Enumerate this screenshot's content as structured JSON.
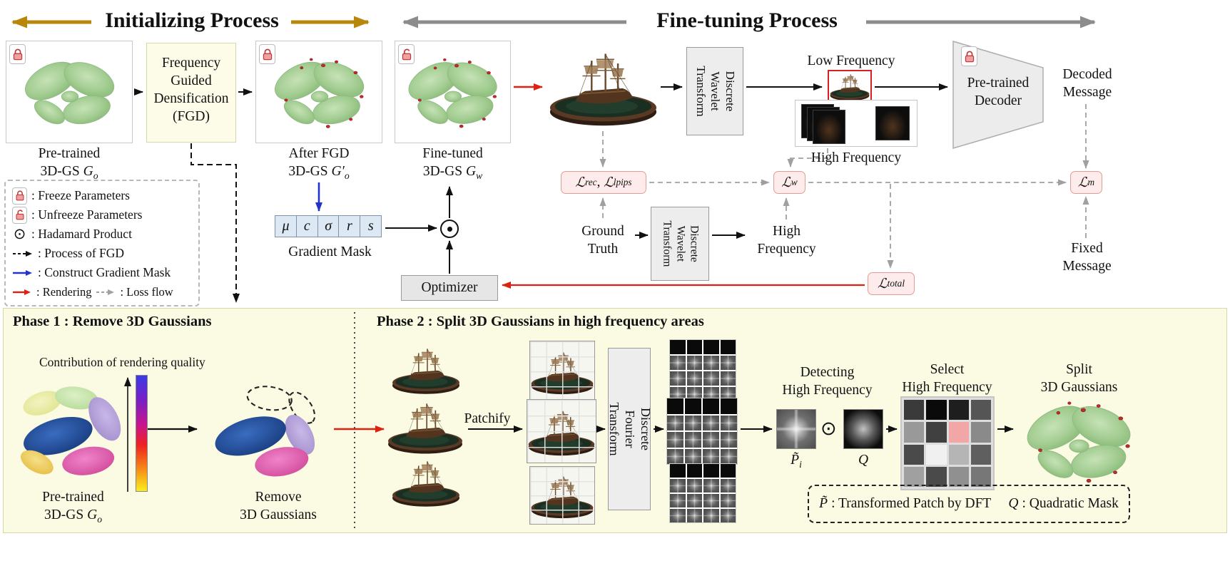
{
  "colors": {
    "gold_accent": "#b8860b",
    "gray_arrow": "#8c8c8c",
    "red_arrow": "#dd2211",
    "blue_arrow": "#2233cc",
    "loss_box_bg": "#fdeceb",
    "loss_box_border": "#e39b94",
    "panel_bg": "#fbfbe4",
    "mask_cell_bg": "#dce9f5",
    "select_highlight": "#f2a6a6"
  },
  "header": {
    "init_title": "Initializing Process",
    "finetune_title": "Fine-tuning Process"
  },
  "top": {
    "pretrained": {
      "line1": "Pre-trained",
      "prefix": "3D-GS",
      "sym": "G",
      "sub": "o"
    },
    "fgd_lines": [
      "Frequency",
      "Guided",
      "Densification",
      "(FGD)"
    ],
    "after_fgd": {
      "line1": "After FGD",
      "prefix": "3D-GS",
      "sym": "G′",
      "sub": "o"
    },
    "fine_tuned": {
      "line1": "Fine-tuned",
      "prefix": "3D-GS",
      "sym": "G",
      "sub": "w"
    },
    "dwt1": "Discrete Wavelet Transform",
    "dwt2": "Discrete Wavelet Transform",
    "low_freq": "Low Frequency",
    "high_freq": "High Frequency",
    "decoder": {
      "line1": "Pre-trained",
      "line2": "Decoder"
    },
    "decoded": {
      "line1": "Decoded",
      "line2": "Message"
    },
    "ground_truth": {
      "line1": "Ground",
      "line2": "Truth"
    },
    "high_freq2": {
      "line1": "High",
      "line2": "Frequency"
    },
    "fixed": {
      "line1": "Fixed",
      "line2": "Message"
    },
    "optimizer": "Optimizer",
    "gradient_mask": "Gradient Mask",
    "mask_symbols": [
      "μ",
      "c",
      "σ",
      "r",
      "s"
    ],
    "hadamard": "⊙"
  },
  "losses": {
    "rec": {
      "base": "ℒ",
      "sub": "rec"
    },
    "sep": ", ",
    "lpips": {
      "base": "ℒ",
      "sub": "lpips"
    },
    "w": {
      "base": "ℒ",
      "sub": "w"
    },
    "m": {
      "base": "ℒ",
      "sub": "m"
    },
    "total": {
      "base": "ℒ",
      "sub": "total"
    }
  },
  "legend": {
    "freeze": ": Freeze Parameters",
    "unfreeze": ": Unfreeze Parameters",
    "hadamard_sym": "⊙",
    "hadamard": ": Hadamard Product",
    "fgd": ": Process of FGD",
    "mask": ": Construct Gradient Mask",
    "render": ": Rendering",
    "loss": ": Loss flow"
  },
  "phase1": {
    "title": "Phase 1 : Remove 3D Gaussians",
    "contribution": "Contribution of rendering quality",
    "pretrained": {
      "line1": "Pre-trained",
      "prefix": "3D-GS",
      "sym": "G",
      "sub": "o"
    },
    "remove": {
      "line1": "Remove",
      "line2": "3D Gaussians"
    }
  },
  "phase2": {
    "title": "Phase 2 : Split 3D Gaussians in high frequency areas",
    "patchify": "Patchify",
    "dft": "Discrete Fourier Transform",
    "detecting": {
      "line1": "Detecting",
      "line2": "High Frequency"
    },
    "p_sym": {
      "base": "P̃",
      "sub": "i"
    },
    "hadamard": "⊙",
    "q_sym": "Q",
    "select": {
      "line1": "Select",
      "line2": "High Frequency"
    },
    "split": {
      "line1": "Split",
      "line2": "3D Gaussians"
    },
    "legend_p": {
      "sym": "P̃",
      "text": ": Transformed Patch by DFT"
    },
    "legend_q": {
      "sym": "Q",
      "text": ": Quadratic Mask"
    },
    "select_grid": {
      "cells": [
        [
          "#3a3a3a",
          "#0a0a0a",
          "#1e1e1e",
          "#555555"
        ],
        [
          "#999999",
          "#404040",
          "#f2a6a6",
          "#8a8a8a"
        ],
        [
          "#4a4a4a",
          "#f0f0f0",
          "#b5b5b5",
          "#5f5f5f"
        ],
        [
          "#a0a0a0",
          "#4a4a4a",
          "#909090",
          "#777777"
        ]
      ]
    }
  }
}
